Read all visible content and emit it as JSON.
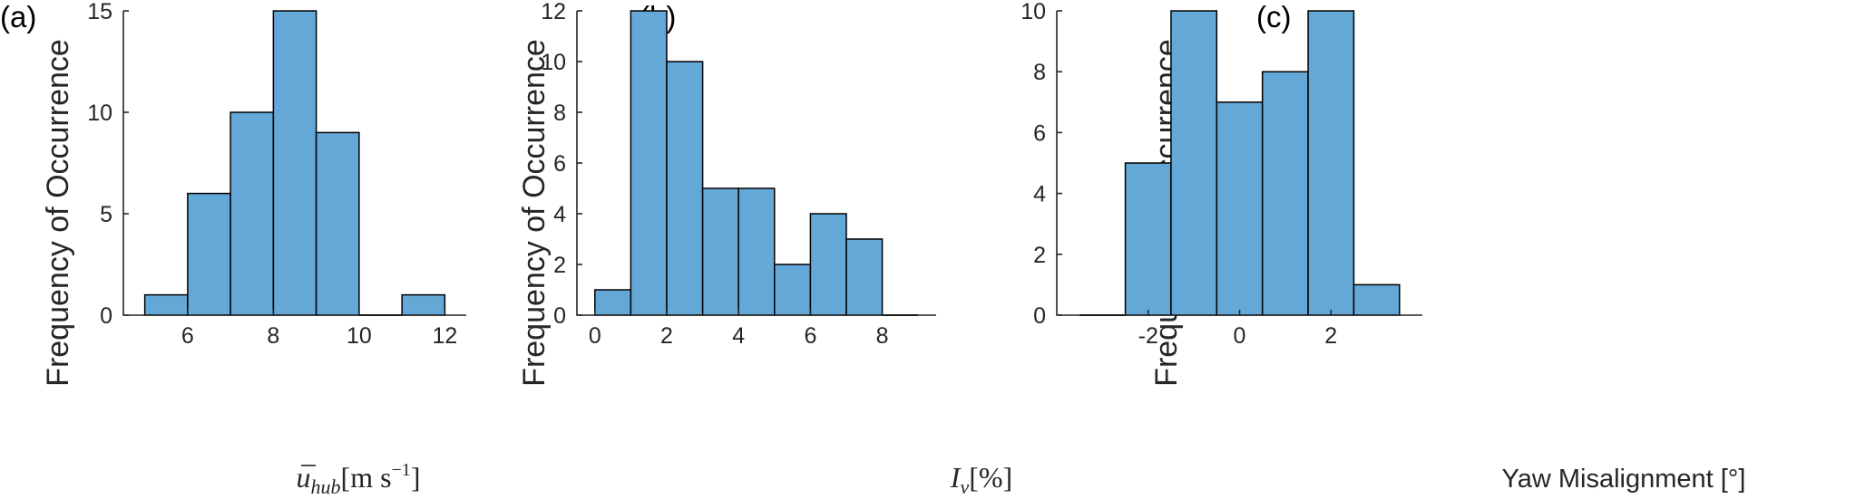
{
  "chart_data": [
    {
      "panel_label": "(a)",
      "type": "bar",
      "histogram": true,
      "bin_edges": [
        5,
        6,
        7,
        8,
        9,
        10,
        11,
        12
      ],
      "values": [
        1,
        6,
        10,
        15,
        9,
        0,
        1
      ],
      "xlim": [
        4.5,
        12.5
      ],
      "ylim": [
        0,
        15
      ],
      "xticks": [
        "6",
        "8",
        "10",
        "12"
      ],
      "xtick_values": [
        6,
        8,
        10,
        12
      ],
      "yticks": [
        "0",
        "5",
        "10",
        "15"
      ],
      "ytick_values": [
        0,
        5,
        10,
        15
      ],
      "ylabel": "Frequency of Occurrence",
      "xlabel_main": "u",
      "xlabel_sub": "hub",
      "xlabel_bracket": "[m s",
      "xlabel_sup": "−1",
      "xlabel_close": "]"
    },
    {
      "panel_label": "(b)",
      "type": "bar",
      "histogram": true,
      "bin_edges": [
        0,
        1,
        2,
        3,
        4,
        5,
        6,
        7,
        8,
        9
      ],
      "values": [
        1,
        12,
        10,
        5,
        5,
        2,
        4,
        3,
        0
      ],
      "xlim": [
        -0.5,
        9.5
      ],
      "ylim": [
        0,
        12
      ],
      "xticks": [
        "0",
        "2",
        "4",
        "6",
        "8"
      ],
      "xtick_values": [
        0,
        2,
        4,
        6,
        8
      ],
      "yticks": [
        "0",
        "2",
        "4",
        "6",
        "8",
        "10",
        "12"
      ],
      "ytick_values": [
        0,
        2,
        4,
        6,
        8,
        10,
        12
      ],
      "ylabel": "Frequency of Occurrence",
      "xlabel_main": "I",
      "xlabel_sub": "v",
      "xlabel_bracket": "[%]"
    },
    {
      "panel_label": "(c)",
      "type": "bar",
      "histogram": true,
      "bin_edges": [
        -3.5,
        -2.5,
        -1.5,
        -0.5,
        0.5,
        1.5,
        2.5,
        3.5
      ],
      "values": [
        0,
        5,
        10,
        7,
        8,
        10,
        1
      ],
      "xlim": [
        -4.0,
        4.0
      ],
      "ylim": [
        0,
        10
      ],
      "xticks": [
        "-2",
        "0",
        "2"
      ],
      "xtick_values": [
        -2,
        0,
        2
      ],
      "yticks": [
        "0",
        "2",
        "4",
        "6",
        "8",
        "10"
      ],
      "ytick_values": [
        0,
        2,
        4,
        6,
        8,
        10
      ],
      "ylabel": "Frequency of Occurrence",
      "xlabel": "Yaw Misalignment [°]"
    }
  ],
  "style": {
    "bar_fill": "#64a8d8",
    "bar_edge": "#000000",
    "axis_color": "#262626"
  }
}
